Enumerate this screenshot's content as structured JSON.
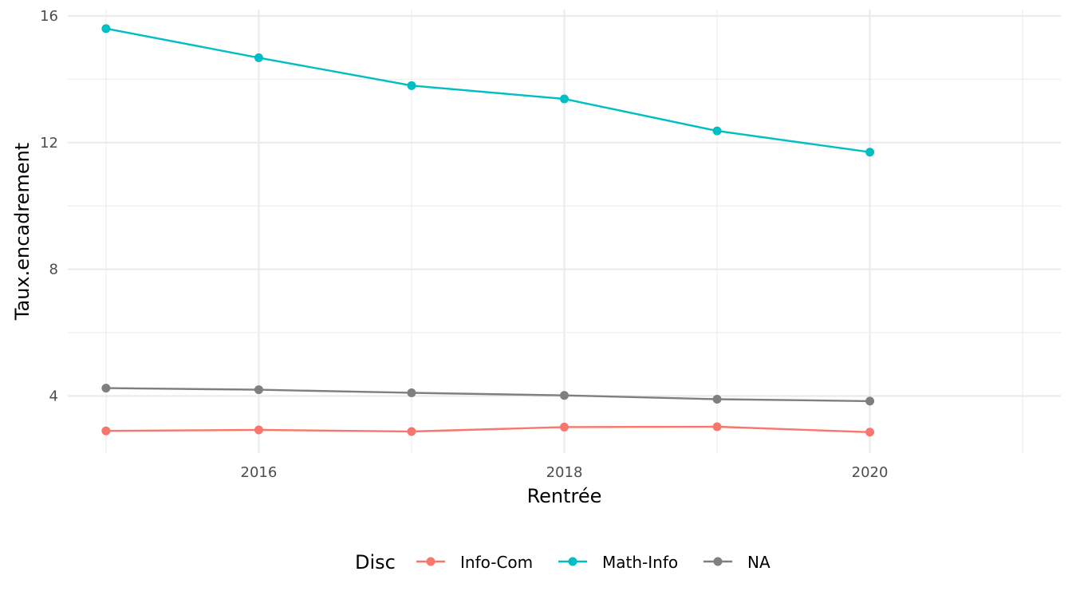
{
  "chart_data": {
    "type": "line",
    "title": "",
    "xlabel": "Rentrée",
    "ylabel": "Taux.encadrement",
    "x": [
      2015,
      2016,
      2017,
      2018,
      2019,
      2020
    ],
    "xlim": [
      2014.75,
      2021.25
    ],
    "ylim": [
      2.2,
      16.2
    ],
    "xticks": [
      2016,
      2018,
      2020
    ],
    "yticks": [
      4,
      8,
      12,
      16
    ],
    "x_tick_labels": [
      "2016",
      "2018",
      "2020"
    ],
    "y_tick_labels": [
      "4",
      "8",
      "12",
      "16"
    ],
    "grid": true,
    "legend": {
      "title": "Disc",
      "position": "bottom"
    },
    "series": [
      {
        "name": "Info-Com",
        "color": "#F8766D",
        "values": [
          2.9,
          2.93,
          2.88,
          3.02,
          3.03,
          2.86
        ]
      },
      {
        "name": "Math-Info",
        "color": "#00BFC4",
        "values": [
          15.6,
          14.68,
          13.8,
          13.38,
          12.37,
          11.7
        ]
      },
      {
        "name": "NA",
        "color": "#7F7F7F",
        "values": [
          4.25,
          4.2,
          4.1,
          4.02,
          3.9,
          3.84
        ]
      }
    ]
  }
}
